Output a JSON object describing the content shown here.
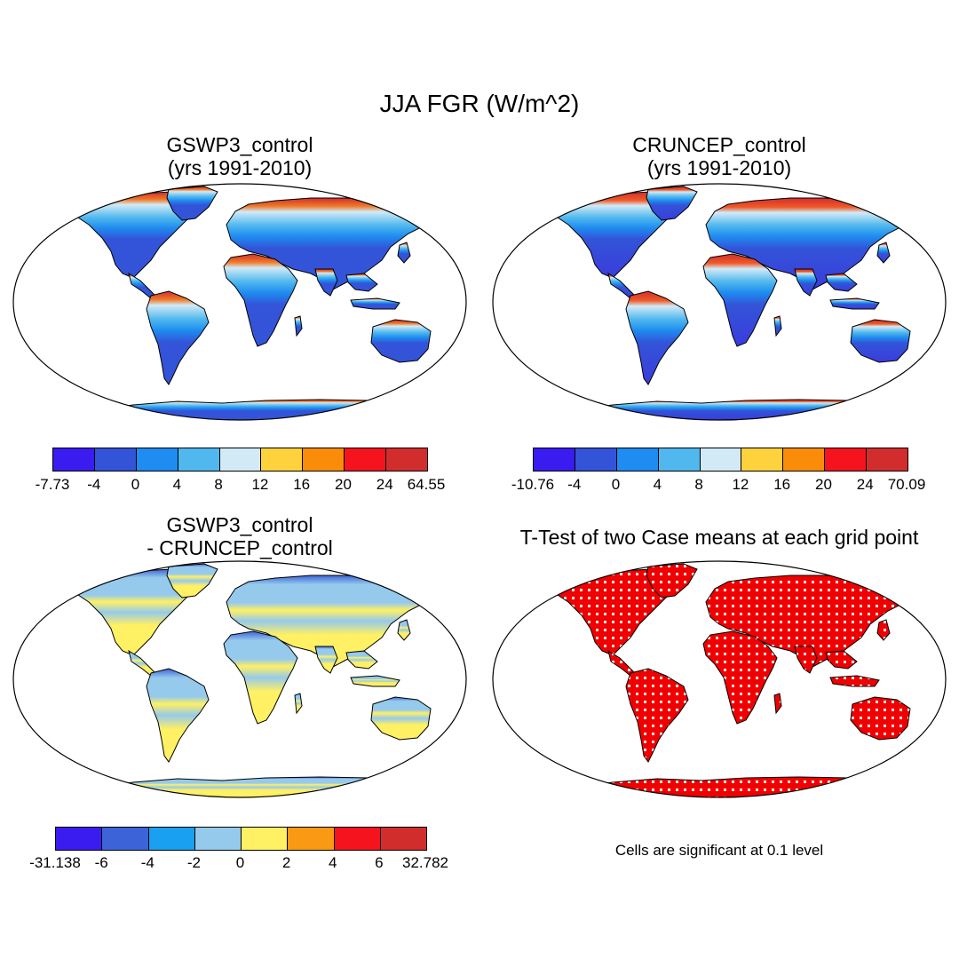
{
  "title": "JJA FGR (W/m^2)",
  "panels": [
    {
      "id": "p1",
      "title_lines": [
        "GSWP3_control",
        "(yrs 1991-2010)"
      ],
      "colorbar": {
        "ticks": [
          "-7.73",
          "-4",
          "0",
          "4",
          "8",
          "12",
          "16",
          "20",
          "24",
          "64.55"
        ],
        "colors": [
          "#3a1cf0",
          "#3354d8",
          "#1e8cf0",
          "#50b8ee",
          "#d2eaf6",
          "#fdd23c",
          "#fa8c0a",
          "#f5141e",
          "#d22d2d"
        ]
      }
    },
    {
      "id": "p2",
      "title_lines": [
        "CRUNCEP_control",
        "(yrs 1991-2010)"
      ],
      "colorbar": {
        "ticks": [
          "-10.76",
          "-4",
          "0",
          "4",
          "8",
          "12",
          "16",
          "20",
          "24",
          "70.09"
        ],
        "colors": [
          "#3a1cf0",
          "#3354d8",
          "#1e8cf0",
          "#50b8ee",
          "#d2eaf6",
          "#fdd23c",
          "#fa8c0a",
          "#f5141e",
          "#d22d2d"
        ]
      }
    },
    {
      "id": "p3",
      "title_lines": [
        "GSWP3_control",
        "- CRUNCEP_control"
      ],
      "colorbar": {
        "ticks": [
          "-31.138",
          "-6",
          "-4",
          "-2",
          "0",
          "2",
          "4",
          "6",
          "32.782"
        ],
        "colors": [
          "#3a1cf0",
          "#3c64d8",
          "#1aa0f0",
          "#96caec",
          "#fff064",
          "#fa9a14",
          "#f5141e",
          "#d22d2d"
        ]
      }
    },
    {
      "id": "p4",
      "title_lines": [
        "T-Test of two Case means at each grid point"
      ],
      "note": "Cells are significant at 0.1 level"
    }
  ],
  "colors": {
    "land_outline": "#000000",
    "significant": "#f00000"
  }
}
